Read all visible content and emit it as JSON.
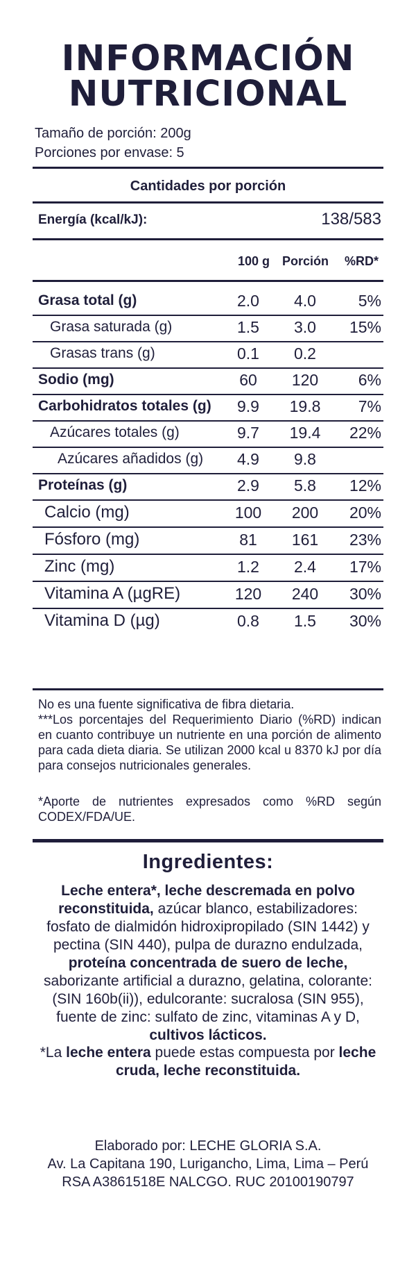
{
  "title": {
    "line1": "INFORMACIÓN",
    "line2": "NUTRICIONAL"
  },
  "serving": {
    "size": "Tamaño de porción: 200g",
    "per_container": "Porciones por envase: 5"
  },
  "amounts_header": "Cantidades por porción",
  "energy": {
    "label": "Energía (kcal/kJ):",
    "value": "138/583"
  },
  "columns": {
    "per100": "100 g",
    "portion": "Porción",
    "rd": "%RD*"
  },
  "rows": [
    {
      "name": "Grasa total (g)",
      "style": "bold",
      "per100": "2.0",
      "portion": "4.0",
      "rd": "5%"
    },
    {
      "name": "Grasa saturada (g)",
      "style": "sub",
      "per100": "1.5",
      "portion": "3.0",
      "rd": "15%"
    },
    {
      "name": "Grasas trans (g)",
      "style": "sub",
      "per100": "0.1",
      "portion": "0.2",
      "rd": ""
    },
    {
      "name": "Sodio (mg)",
      "style": "bold",
      "per100": "60",
      "portion": "120",
      "rd": "6%"
    },
    {
      "name": "Carbohidratos totales (g)",
      "style": "bold",
      "per100": "9.9",
      "portion": "19.8",
      "rd": "7%"
    },
    {
      "name": "Azúcares totales (g)",
      "style": "sub",
      "per100": "9.7",
      "portion": "19.4",
      "rd": "22%"
    },
    {
      "name": "Azúcares añadidos (g)",
      "style": "subsub",
      "per100": "4.9",
      "portion": "9.8",
      "rd": ""
    },
    {
      "name": "Proteínas (g)",
      "style": "bold",
      "per100": "2.9",
      "portion": "5.8",
      "rd": "12%"
    },
    {
      "name": "Calcio (mg)",
      "style": "large",
      "per100": "100",
      "portion": "200",
      "rd": "20%"
    },
    {
      "name": "Fósforo (mg)",
      "style": "large",
      "per100": "81",
      "portion": "161",
      "rd": "23%"
    },
    {
      "name": "Zinc (mg)",
      "style": "large",
      "per100": "1.2",
      "portion": "2.4",
      "rd": "17%"
    },
    {
      "name": "Vitamina A (µgRE)",
      "style": "large",
      "per100": "120",
      "portion": "240",
      "rd": "30%"
    },
    {
      "name": "Vitamina D (µg)",
      "style": "large",
      "per100": "0.8",
      "portion": "1.5",
      "rd": "30%"
    }
  ],
  "notes": {
    "fiber": "No es una fuente significativa de fibra dietaria.",
    "rd_explanation": "***Los porcentajes del Requerimiento Diario (%RD) indican en cuanto contribuye un nutriente en una porción de alimento para cada dieta diaria. Se utilizan 2000 kcal u 8370 kJ por día para consejos nutricionales generales.",
    "codex": "*Aporte de nutrientes expresados como %RD según CODEX/FDA/UE."
  },
  "ingredients": {
    "title": "Ingredientes:",
    "p1_bold": "Leche entera*, leche descremada en polvo reconstituida,",
    "p2": " azúcar blanco, estabilizadores: fosfato de dialmidón hidroxipropilado (SIN 1442) y pectina (SIN 440), pulpa de durazno endulzada, ",
    "p3_bold": "proteína concentrada de suero de leche,",
    "p4": " saborizante artificial a durazno, gelatina, colorante: (SIN 160b(ii)), edulcorante: sucralosa (SIN 955), fuente de zinc: sulfato de zinc, vitaminas A y D, ",
    "p5_bold": "cultivos lácticos."
  },
  "whole_milk_note": {
    "a": "*La ",
    "b_bold": "leche entera",
    "c": " puede estas compuesta por ",
    "d_bold": "leche cruda, leche reconstituida."
  },
  "maker": {
    "line1": "Elaborado por: LECHE GLORIA S.A.",
    "line2": "Av. La Capitana 190, Lurigancho, Lima, Lima – Perú",
    "line3": "RSA A3861518E NALCGO. RUC 20100190797"
  }
}
